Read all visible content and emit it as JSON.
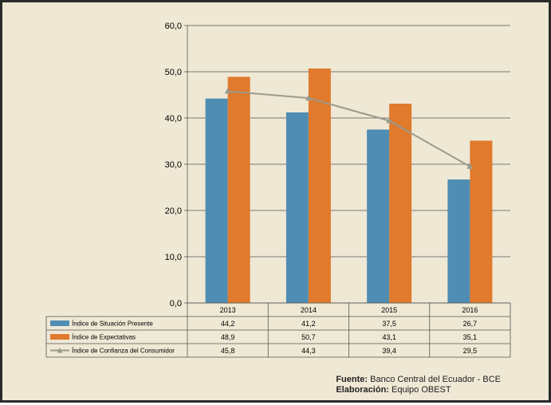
{
  "chart_data": {
    "type": "bar",
    "categories": [
      "2013",
      "2014",
      "2015",
      "2016"
    ],
    "series": [
      {
        "name": "Índice de Situación Presente",
        "kind": "bar",
        "color": "#4f8db3",
        "values": [
          44.2,
          41.2,
          37.5,
          26.7
        ],
        "labels": [
          "44,2",
          "41,2",
          "37,5",
          "26,7"
        ]
      },
      {
        "name": "Índice de Expectativas",
        "kind": "bar",
        "color": "#e07a2c",
        "values": [
          48.9,
          50.7,
          43.1,
          35.1
        ],
        "labels": [
          "48,9",
          "50,7",
          "43,1",
          "35,1"
        ]
      },
      {
        "name": "Índice de Confianza del Consumidor",
        "kind": "line",
        "color": "#9a9a8c",
        "values": [
          45.8,
          44.3,
          39.4,
          29.5
        ],
        "labels": [
          "45,8",
          "44,3",
          "39,4",
          "29,5"
        ]
      }
    ],
    "ylim": [
      0,
      60
    ],
    "yticks": [
      0,
      10,
      20,
      30,
      40,
      50,
      60
    ],
    "ytick_labels": [
      "0,0",
      "10,0",
      "20,0",
      "30,0",
      "40,0",
      "50,0",
      "60,0"
    ],
    "grid": true,
    "legend": "data-table-below"
  },
  "source": {
    "fuente_label": "Fuente:",
    "fuente_value": "Banco Central del Ecuador - BCE",
    "elaboracion_label": "Elaboración:",
    "elaboracion_value": "Equipo OBEST"
  }
}
